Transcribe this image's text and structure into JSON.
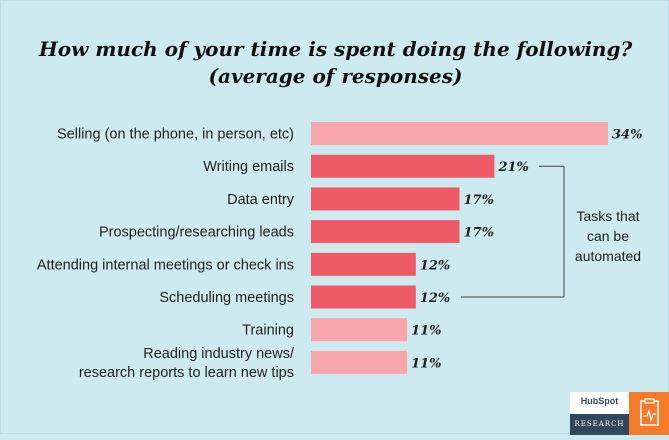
{
  "chart_data": {
    "type": "bar",
    "orientation": "horizontal",
    "title": "How much of your time is spent doing the following?",
    "subtitle": "(average of responses)",
    "categories": [
      "Selling (on the phone, in person, etc)",
      "Writing emails",
      "Data entry",
      "Prospecting/researching leads",
      "Attending internal meetings or check ins",
      "Scheduling meetings",
      "Training",
      "Reading industry news/ research reports to learn new tips"
    ],
    "category_lines": [
      [
        "Selling (on the phone, in person, etc)"
      ],
      [
        "Writing emails"
      ],
      [
        "Data entry"
      ],
      [
        "Prospecting/researching leads"
      ],
      [
        "Attending internal meetings or check ins"
      ],
      [
        "Scheduling meetings"
      ],
      [
        "Training"
      ],
      [
        "Reading industry news/",
        "research reports to learn new tips"
      ]
    ],
    "values": [
      34,
      21,
      17,
      17,
      12,
      12,
      11,
      11
    ],
    "value_labels": [
      "34%",
      "21%",
      "17%",
      "17%",
      "12%",
      "12%",
      "11%",
      "11%"
    ],
    "automatable": [
      false,
      true,
      true,
      true,
      true,
      true,
      false,
      false
    ],
    "annotation": "Tasks that can be automated",
    "grid": false,
    "xlim": [
      0,
      34
    ]
  },
  "colors": {
    "background": "#cdeaf0",
    "bar_automatable": "#ef5a67",
    "bar_other": "#f7a6ac",
    "bracket": "#444444",
    "logo_orange": "#f47b2a",
    "logo_dark": "#33475b"
  },
  "branding": {
    "name": "HubSpot",
    "tagline": "RESEARCH",
    "icon": "clipboard-chart-icon"
  }
}
